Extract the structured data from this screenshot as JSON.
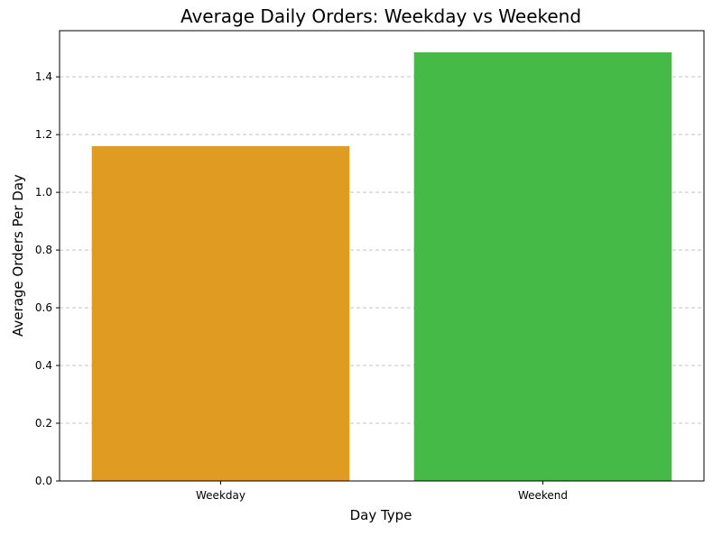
{
  "chart_data": {
    "type": "bar",
    "title": "Average Daily Orders: Weekday vs Weekend",
    "xlabel": "Day Type",
    "ylabel": "Average Orders Per Day",
    "categories": [
      "Weekday",
      "Weekend"
    ],
    "values": [
      1.16,
      1.485
    ],
    "bar_colors": [
      "#E09C22",
      "#46BA46"
    ],
    "ylim": [
      0,
      1.56
    ],
    "yticks": [
      0.0,
      0.2,
      0.4,
      0.6,
      0.8,
      1.0,
      1.2,
      1.4
    ],
    "ytick_labels": [
      "0.0",
      "0.2",
      "0.4",
      "0.6",
      "0.8",
      "1.0",
      "1.2",
      "1.4"
    ],
    "grid": "horizontal dashed",
    "legend": "none"
  }
}
